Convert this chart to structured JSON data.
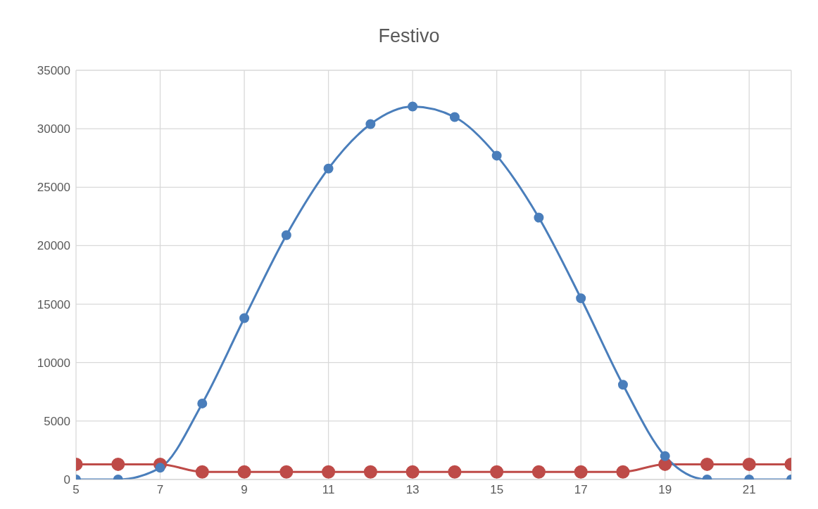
{
  "chart_data": {
    "type": "line",
    "title": "Festivo",
    "xlim": [
      5,
      22
    ],
    "xticks": [
      5,
      7,
      9,
      11,
      13,
      15,
      17,
      19,
      21
    ],
    "ylim": [
      0,
      35000
    ],
    "yticks": [
      0,
      5000,
      10000,
      15000,
      20000,
      25000,
      30000,
      35000
    ],
    "grid": true,
    "marker": "circle",
    "x": [
      5,
      6,
      7,
      8,
      9,
      10,
      11,
      12,
      13,
      14,
      15,
      16,
      17,
      18,
      19,
      20,
      21,
      22
    ],
    "series": [
      {
        "color": "#4a7ebb",
        "values": [
          0,
          0,
          1000,
          6500,
          13800,
          20900,
          26600,
          30400,
          31900,
          31000,
          27700,
          22400,
          15500,
          8100,
          2000,
          0,
          0,
          0
        ]
      },
      {
        "color": "#be4b48",
        "values": [
          1300,
          1300,
          1300,
          650,
          650,
          650,
          650,
          650,
          650,
          650,
          650,
          650,
          650,
          650,
          1300,
          1300,
          1300,
          1300
        ]
      }
    ]
  }
}
